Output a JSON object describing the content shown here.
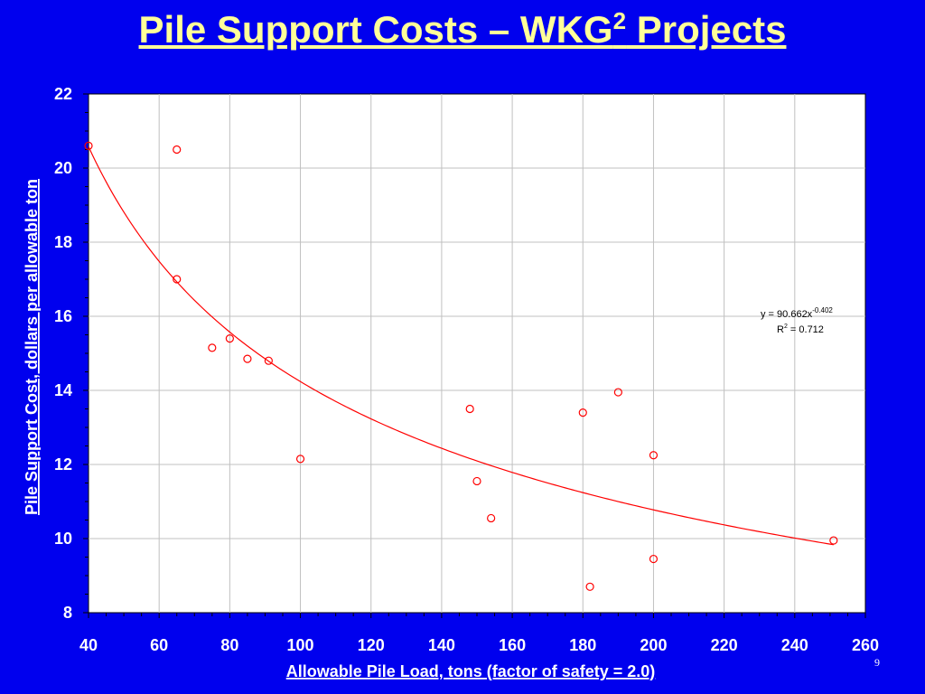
{
  "slide": {
    "title_main": "Pile Support Costs – WKG",
    "title_sup": "2",
    "title_tail": " Projects",
    "page_number": "9"
  },
  "colors": {
    "background": "#0000ee",
    "title": "#ffff99",
    "plot_background": "#ffffff",
    "series": "#ff0000",
    "grid": "#c0c0c0",
    "axis_text": "#ffffff"
  },
  "chart_data": {
    "type": "scatter",
    "title": "",
    "xlabel": "Allowable Pile Load, tons (factor of safety = 2.0)",
    "ylabel": "Pile Support Cost, dollars per allowable ton",
    "xlim": [
      40,
      260
    ],
    "ylim": [
      8,
      22
    ],
    "x_ticks": [
      40,
      60,
      80,
      100,
      120,
      140,
      160,
      180,
      200,
      220,
      240,
      260
    ],
    "y_ticks": [
      8,
      10,
      12,
      14,
      16,
      18,
      20,
      22
    ],
    "grid": true,
    "series": [
      {
        "marker": "open-circle",
        "points": [
          [
            40,
            20.6
          ],
          [
            65,
            20.5
          ],
          [
            65,
            17.0
          ],
          [
            75,
            15.15
          ],
          [
            80,
            15.4
          ],
          [
            85,
            14.85
          ],
          [
            91,
            14.8
          ],
          [
            100,
            12.15
          ],
          [
            148,
            13.5
          ],
          [
            150,
            11.55
          ],
          [
            154,
            10.55
          ],
          [
            180,
            13.4
          ],
          [
            182,
            8.7
          ],
          [
            190,
            13.95
          ],
          [
            200,
            12.25
          ],
          [
            200,
            9.45
          ],
          [
            251,
            9.95
          ]
        ]
      }
    ],
    "trendline": {
      "type": "power",
      "coefficient": 90.662,
      "exponent": -0.402,
      "x_range": [
        40,
        251
      ],
      "equation_text": "y = 90.662x",
      "equation_exp": "-0.402",
      "r2_prefix": "R",
      "r2_sup": "2",
      "r2_text": " = 0.712"
    }
  }
}
